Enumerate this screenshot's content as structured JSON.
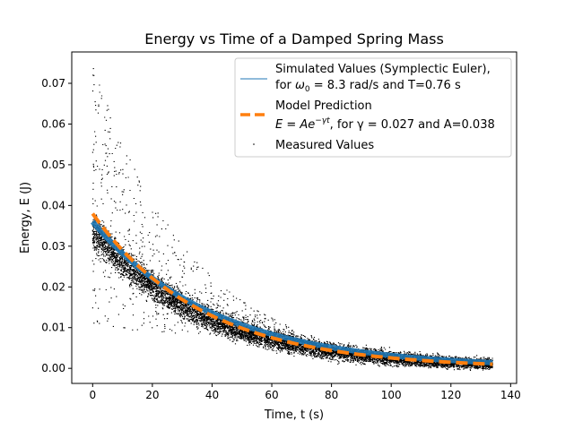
{
  "chart_data": {
    "type": "scatter",
    "title": "Energy vs Time of a Damped Spring Mass",
    "xlabel": "Time, t (s)",
    "ylabel": "Energy, E (J)",
    "xlim": [
      -7,
      142
    ],
    "ylim": [
      -0.0037,
      0.0777
    ],
    "x_ticks": [
      0,
      20,
      40,
      60,
      80,
      100,
      120,
      140
    ],
    "y_ticks": [
      0.0,
      0.01,
      0.02,
      0.03,
      0.04,
      0.05,
      0.06,
      0.07
    ],
    "x_tick_labels": [
      "0",
      "20",
      "40",
      "60",
      "80",
      "100",
      "120",
      "140"
    ],
    "y_tick_labels": [
      "0.00",
      "0.01",
      "0.02",
      "0.03",
      "0.04",
      "0.05",
      "0.06",
      "0.07"
    ],
    "grid": false,
    "legend_position": "top-right",
    "legend": {
      "simulated_line1": "Simulated Values (Symplectic Euler),",
      "simulated_line2_prefix": "for ",
      "simulated_omega": "ω",
      "simulated_omega_sub": "0",
      "simulated_line2_suffix": " = 8.3 rad/s and T=0.76 s",
      "model_line1": "Model Prediction",
      "model_line2_prefix": "E = Ae",
      "model_line2_exp": "−γt",
      "model_line2_suffix": ", for γ = 0.027 and A=0.038",
      "measured": "Measured Values"
    },
    "series": [
      {
        "kind": "line",
        "color": "#1f77b4",
        "amplitude": 0.036,
        "decay_rate": 0.0243,
        "x": [
          0,
          10,
          20,
          30,
          40,
          50,
          60,
          70,
          80,
          90,
          100,
          110,
          120,
          134
        ],
        "y": [
          0.036,
          0.0282,
          0.0221,
          0.0173,
          0.0136,
          0.0107,
          0.0084,
          0.0066,
          0.0052,
          0.004,
          0.0032,
          0.0025,
          0.002,
          0.0014
        ]
      },
      {
        "kind": "dashed-line",
        "color": "#ff7f0e",
        "amplitude": 0.038,
        "decay_rate": 0.027,
        "x": [
          0,
          10,
          20,
          30,
          40,
          50,
          60,
          70,
          80,
          90,
          100,
          110,
          120,
          134
        ],
        "y": [
          0.038,
          0.029,
          0.0221,
          0.0169,
          0.0129,
          0.0098,
          0.0075,
          0.0057,
          0.0044,
          0.0033,
          0.0026,
          0.002,
          0.0015,
          0.001
        ]
      },
      {
        "kind": "scatter",
        "color": "#000000",
        "x_range": [
          0,
          134
        ],
        "dense_band_center_amplitude": 0.034,
        "dense_band_decay_rate": 0.026,
        "scattered_upper_max": 0.075,
        "scattered_lower_min": 0.01
      }
    ]
  }
}
